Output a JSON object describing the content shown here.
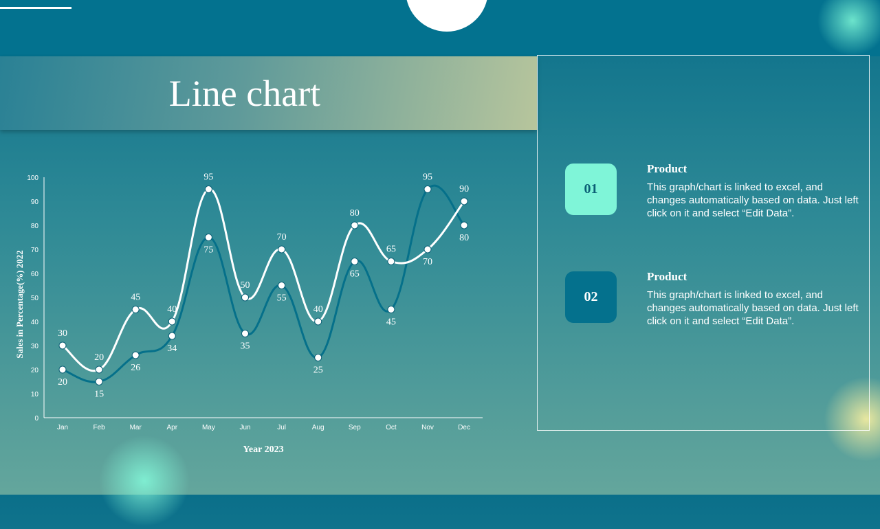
{
  "slide": {
    "title": "Line chart"
  },
  "panel": {
    "items": [
      {
        "number": "01",
        "title": "Product",
        "description": "This graph/chart is linked to excel, and changes automatically based on data. Just left click on it and select “Edit Data”.",
        "badge_color": "#7ff5d8",
        "number_color": "#0b5f75"
      },
      {
        "number": "02",
        "title": "Product",
        "description": "This graph/chart is linked to excel, and changes automatically based on data. Just left click on it and select “Edit Data”.",
        "badge_color": "#04718d",
        "number_color": "#ffffff"
      }
    ]
  },
  "chart_data": {
    "type": "line",
    "smooth": true,
    "categories": [
      "Jan",
      "Feb",
      "Mar",
      "Apr",
      "May",
      "Jun",
      "Jul",
      "Aug",
      "Sep",
      "Oct",
      "Nov",
      "Dec"
    ],
    "series": [
      {
        "values": [
          30,
          20,
          45,
          40,
          95,
          50,
          70,
          40,
          80,
          65,
          70,
          90
        ],
        "color": "#ffffff"
      },
      {
        "values": [
          20,
          15,
          26,
          34,
          75,
          35,
          55,
          25,
          65,
          45,
          95,
          80
        ],
        "color": "#05708a"
      }
    ],
    "xlabel": "Year 2023",
    "ylabel": "Sales in Percentage(%) 2022",
    "ylim": [
      0,
      100
    ],
    "yticks": [
      0,
      10,
      20,
      30,
      40,
      50,
      60,
      70,
      80,
      90,
      100
    ],
    "grid": false,
    "legend": "none"
  }
}
